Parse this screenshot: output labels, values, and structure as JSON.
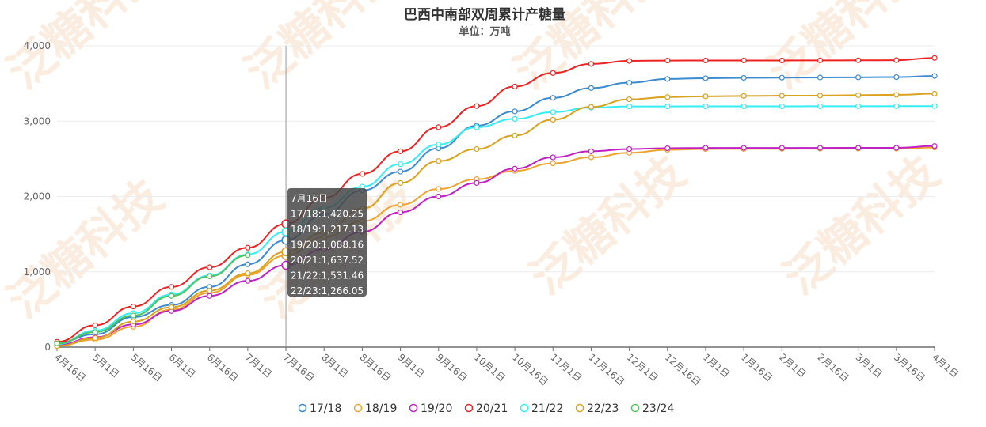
{
  "chart_data": {
    "type": "line",
    "title": "巴西中南部双周累计产糖量",
    "subtitle": "单位：万吨",
    "watermark": "泛糖科技",
    "xlabel": "",
    "ylabel": "",
    "ylim": [
      0,
      4000
    ],
    "yticks": [
      0,
      1000,
      2000,
      3000,
      4000
    ],
    "ytick_labels": [
      "0",
      "1,000",
      "2,000",
      "3,000",
      "4,000"
    ],
    "grid": true,
    "legend_position": "bottom-center",
    "categories": [
      "4月16日",
      "5月1日",
      "5月16日",
      "6月1日",
      "6月16日",
      "7月1日",
      "7月16日",
      "8月1日",
      "8月16日",
      "9月1日",
      "9月16日",
      "10月1日",
      "10月16日",
      "11月1日",
      "11月16日",
      "12月1日",
      "12月16日",
      "1月1日",
      "1月16日",
      "2月1日",
      "2月16日",
      "3月1日",
      "3月16日",
      "4月1日"
    ],
    "series": [
      {
        "name": "17/18",
        "color": "#3a8bcf",
        "values": [
          60,
          170,
          400,
          560,
          800,
          1100,
          1420,
          1760,
          2080,
          2330,
          2640,
          2940,
          3130,
          3310,
          3440,
          3510,
          3560,
          3570,
          3575,
          3578,
          3580,
          3582,
          3585,
          3600
        ]
      },
      {
        "name": "18/19",
        "color": "#f0a22e",
        "values": [
          20,
          100,
          270,
          500,
          720,
          960,
          1217,
          1460,
          1670,
          1890,
          2100,
          2230,
          2340,
          2440,
          2520,
          2580,
          2620,
          2630,
          2632,
          2633,
          2634,
          2635,
          2636,
          2650
        ]
      },
      {
        "name": "19/20",
        "color": "#c021c4",
        "values": [
          30,
          130,
          300,
          480,
          680,
          880,
          1088,
          1300,
          1530,
          1790,
          2000,
          2180,
          2370,
          2520,
          2600,
          2630,
          2640,
          2645,
          2645,
          2645,
          2645,
          2646,
          2646,
          2670
        ]
      },
      {
        "name": "20/21",
        "color": "#ee2222",
        "values": [
          70,
          290,
          540,
          800,
          1060,
          1320,
          1637,
          1980,
          2300,
          2600,
          2920,
          3200,
          3460,
          3640,
          3760,
          3800,
          3805,
          3806,
          3806,
          3806,
          3807,
          3808,
          3810,
          3840
        ]
      },
      {
        "name": "21/22",
        "color": "#33eef2",
        "values": [
          40,
          220,
          450,
          700,
          950,
          1230,
          1531,
          1850,
          2130,
          2430,
          2690,
          2920,
          3030,
          3120,
          3180,
          3195,
          3196,
          3197,
          3197,
          3197,
          3198,
          3198,
          3199,
          3200
        ]
      },
      {
        "name": "22/23",
        "color": "#d9a21f",
        "values": [
          15,
          120,
          340,
          530,
          750,
          980,
          1266,
          1520,
          1840,
          2180,
          2470,
          2630,
          2810,
          3020,
          3190,
          3290,
          3320,
          3330,
          3335,
          3338,
          3340,
          3345,
          3350,
          3365
        ]
      },
      {
        "name": "23/24",
        "color": "#53c25c",
        "values": [
          50,
          200,
          420,
          680,
          940,
          1220,
          null,
          null,
          null,
          null,
          null,
          null,
          null,
          null,
          null,
          null,
          null,
          null,
          null,
          null,
          null,
          null,
          null,
          null
        ]
      }
    ],
    "tooltip": {
      "category": "7月16日",
      "lines": [
        "17/18:1,420.25",
        "18/19:1,217.13",
        "19/20:1,088.16",
        "20/21:1,637.52",
        "21/22:1,531.46",
        "22/23:1,266.05"
      ]
    }
  }
}
